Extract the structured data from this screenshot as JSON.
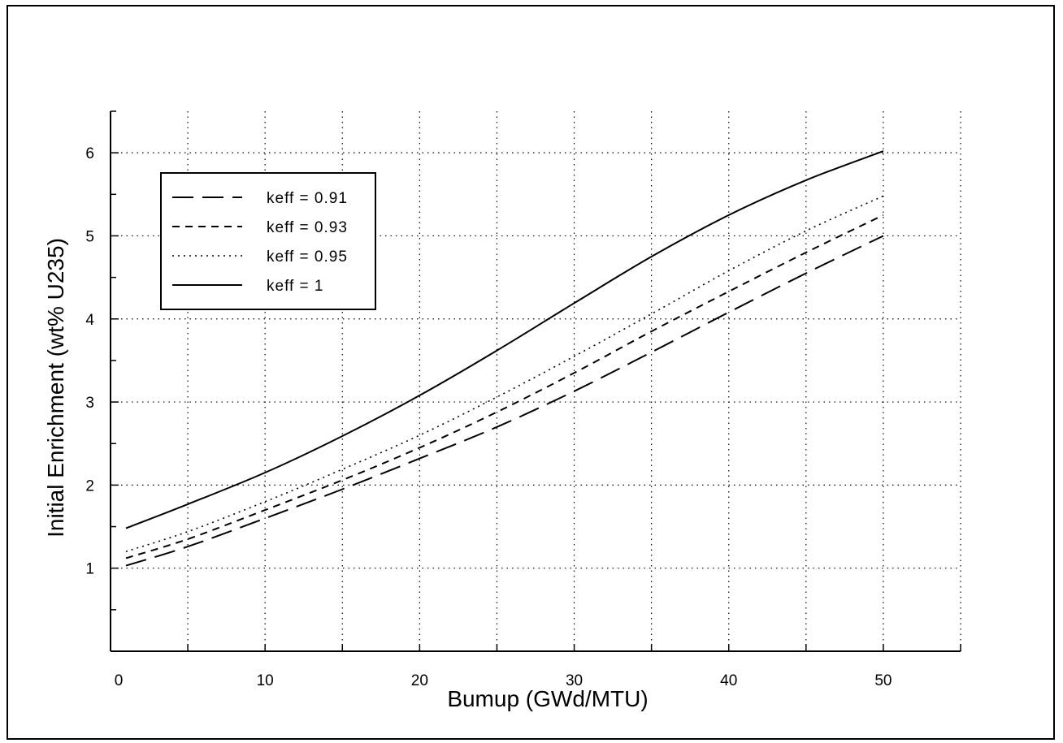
{
  "chart_data": {
    "type": "line",
    "xlabel": "Bumup (GWd/MTU)",
    "ylabel": "Initial Enrichment (wt% U235)",
    "xlim": [
      0,
      55
    ],
    "ylim": [
      0,
      6.5
    ],
    "x_ticks": [
      0,
      10,
      20,
      30,
      40,
      50
    ],
    "y_ticks": [
      1,
      2,
      3,
      4,
      5,
      6
    ],
    "x_minor_step": 5,
    "y_minor_step": 0.5,
    "grid": "dotted",
    "legend_position": "top-left",
    "series": [
      {
        "name": "keff = 0.91",
        "dash": "long-dash",
        "x": [
          1,
          5,
          10,
          15,
          20,
          25,
          30,
          35,
          40,
          45,
          50
        ],
        "y": [
          1.03,
          1.26,
          1.6,
          1.95,
          2.32,
          2.7,
          3.13,
          3.6,
          4.08,
          4.55,
          5.0
        ]
      },
      {
        "name": "keff = 0.93",
        "dash": "short-dash",
        "x": [
          1,
          5,
          10,
          15,
          20,
          25,
          30,
          35,
          40,
          45,
          50
        ],
        "y": [
          1.12,
          1.35,
          1.7,
          2.06,
          2.45,
          2.88,
          3.35,
          3.85,
          4.33,
          4.8,
          5.25
        ]
      },
      {
        "name": "keff = 0.95",
        "dash": "dotted",
        "x": [
          1,
          5,
          10,
          15,
          20,
          25,
          30,
          35,
          40,
          45,
          50
        ],
        "y": [
          1.2,
          1.44,
          1.8,
          2.19,
          2.6,
          3.06,
          3.55,
          4.06,
          4.58,
          5.06,
          5.48
        ]
      },
      {
        "name": "keff = 1",
        "dash": "solid",
        "x": [
          1,
          5,
          10,
          15,
          20,
          25,
          30,
          35,
          40,
          45,
          50
        ],
        "y": [
          1.48,
          1.77,
          2.15,
          2.59,
          3.08,
          3.62,
          4.19,
          4.75,
          5.25,
          5.67,
          6.02
        ]
      }
    ]
  }
}
